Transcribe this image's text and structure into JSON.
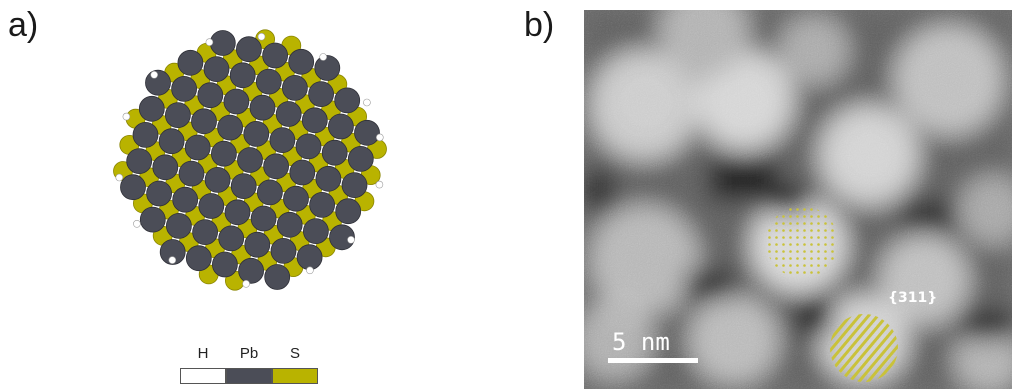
{
  "panels": {
    "a": {
      "label": "a)"
    },
    "b": {
      "label": "b)"
    }
  },
  "legend": {
    "items": [
      {
        "name": "H",
        "color": "#ffffff"
      },
      {
        "name": "Pb",
        "color": "#4b4d57"
      },
      {
        "name": "S",
        "color": "#b9b300"
      }
    ]
  },
  "micrograph": {
    "scale_label": "5 nm",
    "plane_label": "{311}",
    "overlay_color": "#c9c23a"
  }
}
